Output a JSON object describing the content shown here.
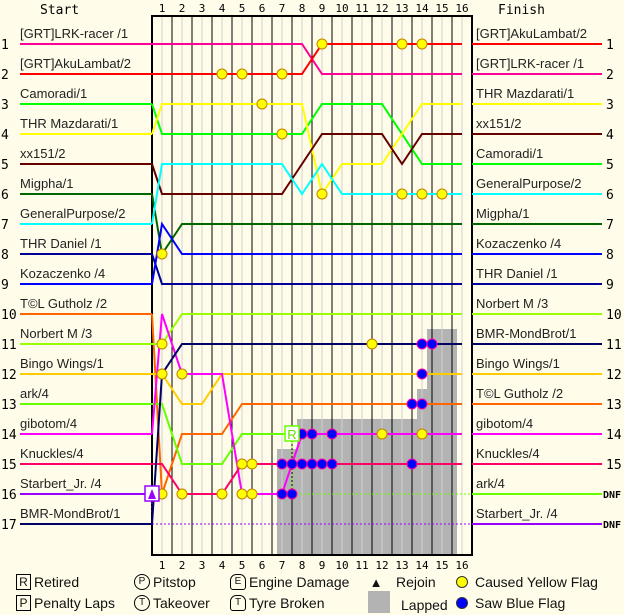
{
  "chart_data": {
    "type": "line",
    "title": "",
    "start_label": "Start",
    "finish_label": "Finish",
    "laps": [
      1,
      2,
      3,
      4,
      5,
      6,
      7,
      8,
      9,
      10,
      11,
      12,
      13,
      14,
      15,
      16
    ],
    "start_positions": [
      "1",
      "2",
      "3",
      "4",
      "5",
      "6",
      "7",
      "8",
      "9",
      "10",
      "11",
      "12",
      "13",
      "14",
      "15",
      "16",
      "17"
    ],
    "finish_positions": [
      "1",
      "2",
      "3",
      "4",
      "5",
      "6",
      "7",
      "8",
      "9",
      "10",
      "11",
      "12",
      "13",
      "14",
      "15",
      "DNF",
      "DNF"
    ],
    "start_order": [
      "[GRT]LRK-racer /1",
      "[GRT]AkuLambat/2",
      "Camoradi/1",
      "THR Mazdarati/1",
      "xx151/2",
      "Migpha/1",
      "GeneralPurpose/2",
      "THR Daniel /1",
      "Kozaczenko /4",
      "T©L Gutholz /2",
      "Norbert M /3",
      "Bingo Wings/1",
      "ark/4",
      "gibotom/4",
      "Knuckles/4",
      "Starbert_Jr. /4",
      "BMR-MondBrot/1"
    ],
    "finish_order": [
      "[GRT]AkuLambat/2",
      "[GRT]LRK-racer /1",
      "THR Mazdarati/1",
      "xx151/2",
      "Camoradi/1",
      "GeneralPurpose/2",
      "Migpha/1",
      "Kozaczenko /4",
      "THR Daniel /1",
      "Norbert M /3",
      "BMR-MondBrot/1",
      "Bingo Wings/1",
      "T©L Gutholz /2",
      "gibotom/4",
      "Knuckles/4",
      "ark/4",
      "Starbert_Jr. /4"
    ],
    "series": [
      {
        "name": "[GRT]LRK-racer /1",
        "color": "#ff0099",
        "positions": [
          1,
          1,
          1,
          1,
          1,
          1,
          1,
          1,
          1,
          2,
          2,
          2,
          2,
          2,
          2,
          2,
          2
        ]
      },
      {
        "name": "[GRT]AkuLambat/2",
        "color": "#ff0000",
        "positions": [
          2,
          2,
          2,
          2,
          2,
          2,
          2,
          2,
          2,
          1,
          1,
          1,
          1,
          1,
          1,
          1,
          1
        ]
      },
      {
        "name": "Camoradi/1",
        "color": "#00ff00",
        "positions": [
          3,
          4,
          4,
          4,
          4,
          4,
          4,
          4,
          4,
          3,
          3,
          3,
          3,
          4,
          5,
          5,
          5
        ]
      },
      {
        "name": "THR Mazdarati/1",
        "color": "#ffff00",
        "positions": [
          4,
          3,
          3,
          3,
          3,
          3,
          3,
          3,
          3,
          6,
          5,
          5,
          5,
          4,
          3,
          3,
          3
        ]
      },
      {
        "name": "xx151/2",
        "color": "#660000",
        "positions": [
          5,
          6,
          6,
          6,
          6,
          6,
          6,
          6,
          5,
          4,
          4,
          4,
          4,
          5,
          4,
          4,
          4
        ]
      },
      {
        "name": "Migpha/1",
        "color": "#006600",
        "positions": [
          6,
          8,
          7,
          7,
          7,
          7,
          7,
          7,
          7,
          7,
          7,
          7,
          7,
          7,
          7,
          7,
          7
        ]
      },
      {
        "name": "GeneralPurpose/2",
        "color": "#00ffff",
        "positions": [
          7,
          5,
          5,
          5,
          5,
          5,
          5,
          5,
          6,
          5,
          6,
          6,
          6,
          6,
          6,
          6,
          6
        ]
      },
      {
        "name": "THR Daniel /1",
        "color": "#000099",
        "positions": [
          8,
          9,
          9,
          9,
          9,
          9,
          9,
          9,
          9,
          9,
          9,
          9,
          9,
          9,
          9,
          9,
          9
        ]
      },
      {
        "name": "Kozaczenko /4",
        "color": "#0000ff",
        "positions": [
          9,
          7,
          8,
          8,
          8,
          8,
          8,
          8,
          8,
          8,
          8,
          8,
          8,
          8,
          8,
          8,
          8
        ]
      },
      {
        "name": "T©L Gutholz /2",
        "color": "#ff6600",
        "positions": [
          10,
          16,
          14,
          14,
          14,
          13,
          13,
          13,
          13,
          13,
          13,
          13,
          13,
          13,
          13,
          13,
          13
        ]
      },
      {
        "name": "Norbert M /3",
        "color": "#99ff00",
        "positions": [
          11,
          11,
          10,
          10,
          10,
          10,
          10,
          10,
          10,
          10,
          10,
          10,
          10,
          10,
          10,
          10,
          10
        ]
      },
      {
        "name": "Bingo Wings/1",
        "color": "#ffcc00",
        "positions": [
          12,
          12,
          13,
          13,
          12,
          12,
          12,
          12,
          12,
          12,
          12,
          12,
          12,
          12,
          12,
          12,
          12
        ]
      },
      {
        "name": "ark/4",
        "color": "#66ff00",
        "positions": [
          13,
          13,
          15,
          15,
          15,
          14,
          14,
          14
        ],
        "retired_lap": 7.5,
        "retired_position": 14
      },
      {
        "name": "gibotom/4",
        "color": "#ff00ff",
        "positions": [
          14,
          10,
          12,
          12,
          12,
          16,
          16,
          16,
          14,
          14,
          14,
          14,
          14,
          14,
          14,
          14,
          14
        ]
      },
      {
        "name": "Knuckles/4",
        "color": "#ff0066",
        "positions": [
          15,
          15,
          16,
          16,
          16,
          15,
          15,
          15,
          15,
          15,
          15,
          15,
          15,
          15,
          15,
          15,
          15
        ]
      },
      {
        "name": "Starbert_Jr. /4",
        "color": "#9900ff",
        "positions": [
          16
        ],
        "retired_lap": 0,
        "retired_position": 16
      },
      {
        "name": "BMR-MondBrot/1",
        "color": "#000066",
        "positions": [
          17,
          12,
          11,
          11,
          11,
          11,
          11,
          11,
          11,
          11,
          11,
          11,
          11,
          11,
          11,
          11,
          11
        ]
      }
    ],
    "yellow_flags": [
      [
        4,
        2
      ],
      [
        5,
        2
      ],
      [
        7,
        2
      ],
      [
        9,
        1
      ],
      [
        13,
        1
      ],
      [
        14,
        1
      ],
      [
        6,
        3
      ],
      [
        7,
        4
      ],
      [
        9,
        6
      ],
      [
        13,
        6
      ],
      [
        14,
        6
      ],
      [
        15,
        6
      ],
      [
        1,
        8
      ],
      [
        1,
        11
      ],
      [
        11.5,
        11
      ],
      [
        1,
        12
      ],
      [
        2,
        12
      ],
      [
        12,
        14
      ],
      [
        14,
        14
      ],
      [
        5,
        15
      ],
      [
        5.5,
        15
      ],
      [
        1,
        16
      ],
      [
        2,
        16
      ],
      [
        4,
        16
      ],
      [
        5,
        16
      ],
      [
        5.5,
        16
      ]
    ],
    "blue_flags": [
      [
        14,
        11
      ],
      [
        14.5,
        11
      ],
      [
        14,
        12
      ],
      [
        13.5,
        13
      ],
      [
        14,
        13
      ],
      [
        8,
        14
      ],
      [
        8.5,
        14
      ],
      [
        9.5,
        14
      ],
      [
        7,
        15
      ],
      [
        7.5,
        15
      ],
      [
        8,
        15
      ],
      [
        8.5,
        15
      ],
      [
        9,
        15
      ],
      [
        9.5,
        15
      ],
      [
        13.5,
        15
      ],
      [
        7,
        16
      ],
      [
        7.5,
        16
      ]
    ],
    "retired_marks": [
      {
        "lap": 7.5,
        "position": 14,
        "label": "R"
      }
    ],
    "pitstop_marks": [
      {
        "lap": 0,
        "position": 16
      }
    ],
    "lapped_regions": [
      {
        "from_lap": 6.75,
        "to_lap": 7.75,
        "from_position": 14.5
      },
      {
        "from_lap": 7.75,
        "to_lap": 13.75,
        "from_position": 13.5
      },
      {
        "from_lap": 13.75,
        "to_lap": 14.25,
        "from_position": 12.5
      },
      {
        "from_lap": 14.25,
        "to_lap": 15.75,
        "from_position": 10.5
      }
    ]
  },
  "legend": {
    "retired": {
      "symbol": "R",
      "label": "Retired"
    },
    "penalty": {
      "symbol": "P",
      "label": "Penalty Laps"
    },
    "pitstop": {
      "symbol": "P",
      "label": "Pitstop"
    },
    "takeover": {
      "symbol": "T",
      "label": "Takeover"
    },
    "engine": {
      "symbol": "E",
      "label": "Engine Damage"
    },
    "tyre": {
      "symbol": "T",
      "label": "Tyre Broken"
    },
    "rejoin": {
      "symbol": "▲",
      "label": "Rejoin"
    },
    "lapped": {
      "label": "Lapped"
    },
    "yellow": {
      "label": "Caused Yellow Flag",
      "color": "#ffff00"
    },
    "blue": {
      "label": "Saw Blue Flag",
      "color": "#0000ff"
    }
  }
}
